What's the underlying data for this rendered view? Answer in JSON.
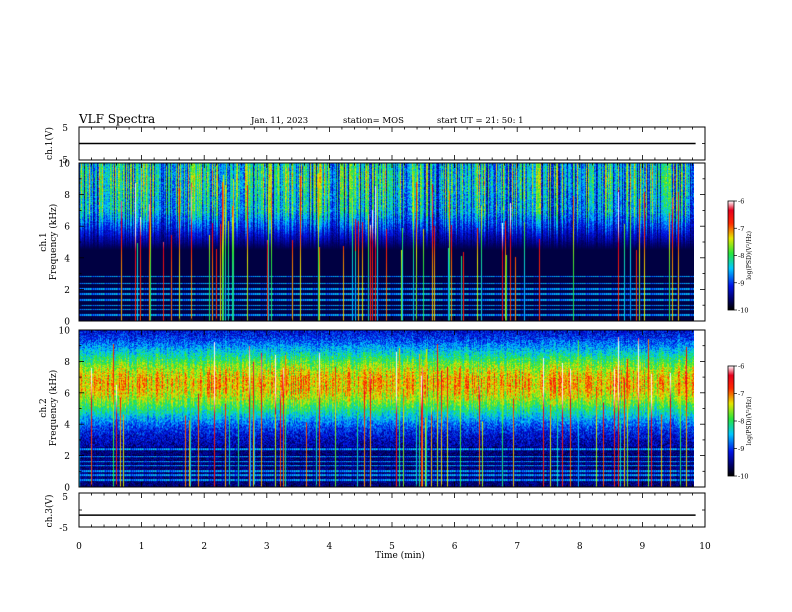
{
  "header": {
    "title": "VLF Spectra",
    "date": "Jan. 11, 2023",
    "station": "station= MOS",
    "start_ut": "start  UT =  21: 50: 1"
  },
  "chart_data": [
    {
      "type": "line",
      "id": "ch1-voltage",
      "ylabel": "ch.1(V)",
      "ylim": [
        -5,
        5
      ],
      "yticks": [
        "5",
        "-5"
      ],
      "series": [
        {
          "x": [
            0,
            9.85
          ],
          "values": [
            0,
            0
          ]
        }
      ]
    },
    {
      "type": "heatmap",
      "id": "ch1-spectrogram",
      "ylabel_line1": "ch.1",
      "ylabel_line2": "Frequency (kHz)",
      "ylim": [
        0,
        10
      ],
      "yticks": [
        "0",
        "2",
        "4",
        "6",
        "8",
        "10"
      ],
      "data_xlim": [
        0,
        9.85
      ],
      "colorbar": {
        "label": "log(PSD)(V²/Hz)",
        "range": [
          -10,
          -6
        ],
        "ticks": [
          "-6",
          "-7",
          "-8",
          "-9",
          "-10"
        ]
      }
    },
    {
      "type": "heatmap",
      "id": "ch2-spectrogram",
      "ylabel_line1": "ch.2",
      "ylabel_line2": "Frequency (kHz)",
      "ylim": [
        0,
        10
      ],
      "yticks": [
        "0",
        "2",
        "4",
        "6",
        "8",
        "10"
      ],
      "data_xlim": [
        0,
        9.85
      ],
      "colorbar": {
        "label": "log(PSD)(V²/Hz)",
        "range": [
          -10,
          -6
        ],
        "ticks": [
          "-6",
          "-7",
          "-8",
          "-9",
          "-10"
        ]
      }
    },
    {
      "type": "line",
      "id": "ch3-voltage",
      "ylabel": "ch.3(V)",
      "ylim": [
        -5,
        5
      ],
      "yticks": [
        "5",
        "-5"
      ],
      "series": [
        {
          "x": [
            0,
            9.85
          ],
          "values": [
            -1.5,
            -1.5
          ]
        }
      ]
    }
  ],
  "x_axis": {
    "label": "Time  (min)",
    "xlim": [
      0,
      10
    ],
    "ticks": [
      "0",
      "1",
      "2",
      "3",
      "4",
      "5",
      "6",
      "7",
      "8",
      "9",
      "10"
    ]
  },
  "colors": {
    "background": "#ffffff",
    "ink": "#000000",
    "no_data": "#000000"
  }
}
